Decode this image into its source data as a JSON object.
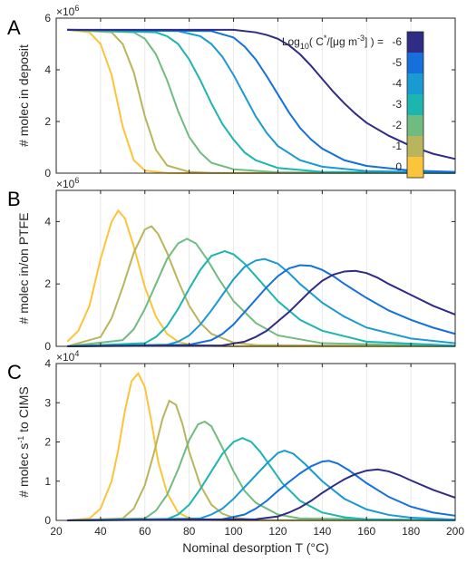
{
  "colors": [
    "#fcc43a",
    "#b9b55c",
    "#70bc80",
    "#1db5b0",
    "#1a9ad2",
    "#1570db",
    "#2e2c84"
  ],
  "colorbar": {
    "labels": [
      "-6",
      "-5",
      "-4",
      "-3",
      "-2",
      "-1",
      "0"
    ],
    "title_prefix": "Log",
    "title_sub": "10",
    "title_mid1": "( C",
    "title_sup1": "*",
    "title_mid2": "/[μg m",
    "title_sup2": "-3",
    "title_end": "] ) ="
  },
  "xaxis": {
    "label": "Nominal desorption T (°C)",
    "ticks": [
      "20",
      "40",
      "60",
      "80",
      "100",
      "120",
      "140",
      "160",
      "180",
      "200"
    ],
    "range": [
      20,
      200
    ]
  },
  "chart_data": [
    {
      "type": "line",
      "panel": "A",
      "ylabel": "# molec in deposit",
      "multiplier_base": "×10",
      "multiplier_exp": "6",
      "yticks": [
        "0",
        "2",
        "4",
        "6"
      ],
      "ylim": [
        0,
        6
      ],
      "grid": "vertical",
      "series": [
        {
          "name": "0",
          "x": [
            25,
            35,
            40,
            45,
            50,
            55,
            60,
            70,
            80,
            200
          ],
          "y": [
            5.55,
            5.45,
            5.0,
            3.8,
            1.8,
            0.5,
            0.1,
            0.01,
            0,
            0
          ]
        },
        {
          "name": "-1",
          "x": [
            25,
            45,
            50,
            55,
            60,
            65,
            70,
            80,
            90,
            200
          ],
          "y": [
            5.55,
            5.45,
            5.0,
            3.9,
            2.2,
            0.9,
            0.3,
            0.05,
            0.01,
            0
          ]
        },
        {
          "name": "-2",
          "x": [
            25,
            55,
            60,
            65,
            70,
            75,
            80,
            85,
            90,
            100,
            120,
            200
          ],
          "y": [
            5.55,
            5.45,
            5.2,
            4.6,
            3.6,
            2.4,
            1.4,
            0.8,
            0.4,
            0.15,
            0.03,
            0
          ]
        },
        {
          "name": "-3",
          "x": [
            25,
            65,
            70,
            75,
            80,
            85,
            90,
            95,
            100,
            105,
            110,
            120,
            140,
            200
          ],
          "y": [
            5.55,
            5.45,
            5.3,
            5.0,
            4.4,
            3.6,
            2.7,
            1.9,
            1.3,
            0.8,
            0.5,
            0.2,
            0.05,
            0
          ]
        },
        {
          "name": "-4",
          "x": [
            25,
            75,
            85,
            90,
            95,
            100,
            105,
            110,
            115,
            120,
            130,
            140,
            160,
            200
          ],
          "y": [
            5.55,
            5.5,
            5.3,
            5.0,
            4.5,
            3.8,
            3.0,
            2.2,
            1.55,
            1.05,
            0.5,
            0.25,
            0.08,
            0.02
          ]
        },
        {
          "name": "-5",
          "x": [
            25,
            90,
            100,
            105,
            110,
            115,
            120,
            125,
            130,
            135,
            140,
            150,
            160,
            180,
            200
          ],
          "y": [
            5.55,
            5.5,
            5.25,
            4.9,
            4.4,
            3.75,
            3.05,
            2.35,
            1.75,
            1.3,
            0.95,
            0.5,
            0.28,
            0.1,
            0.05
          ]
        },
        {
          "name": "-6",
          "x": [
            25,
            100,
            110,
            115,
            120,
            125,
            130,
            135,
            140,
            145,
            150,
            155,
            160,
            170,
            180,
            190,
            200
          ],
          "y": [
            5.55,
            5.55,
            5.45,
            5.35,
            5.2,
            4.95,
            4.6,
            4.15,
            3.65,
            3.15,
            2.7,
            2.3,
            1.95,
            1.45,
            1.05,
            0.75,
            0.55
          ]
        }
      ]
    },
    {
      "type": "line",
      "panel": "B",
      "ylabel": "# molec in/on PTFE",
      "multiplier_base": "×10",
      "multiplier_exp": "6",
      "yticks": [
        "0",
        "2",
        "4"
      ],
      "ylim": [
        0,
        5
      ],
      "grid": "vertical",
      "series": [
        {
          "name": "0",
          "x": [
            25,
            30,
            35,
            40,
            45,
            48,
            51,
            55,
            60,
            65,
            70,
            75,
            80,
            90,
            100,
            200
          ],
          "y": [
            0.15,
            0.5,
            1.3,
            2.8,
            4.0,
            4.35,
            4.1,
            3.2,
            1.9,
            0.95,
            0.4,
            0.15,
            0.06,
            0.01,
            0,
            0
          ]
        },
        {
          "name": "-1",
          "x": [
            25,
            40,
            45,
            50,
            55,
            60,
            63,
            66,
            70,
            75,
            80,
            85,
            90,
            100,
            110,
            200
          ],
          "y": [
            0,
            0.3,
            0.9,
            1.9,
            3.0,
            3.75,
            3.85,
            3.6,
            3.0,
            2.1,
            1.3,
            0.75,
            0.4,
            0.12,
            0.04,
            0
          ]
        },
        {
          "name": "-2",
          "x": [
            25,
            50,
            55,
            60,
            65,
            70,
            75,
            79,
            83,
            88,
            93,
            100,
            110,
            120,
            140,
            200
          ],
          "y": [
            0,
            0.2,
            0.55,
            1.2,
            2.0,
            2.8,
            3.3,
            3.45,
            3.3,
            2.8,
            2.2,
            1.45,
            0.75,
            0.35,
            0.1,
            0
          ]
        },
        {
          "name": "-3",
          "x": [
            25,
            60,
            65,
            70,
            75,
            80,
            85,
            90,
            96,
            100,
            105,
            110,
            120,
            130,
            140,
            160,
            200
          ],
          "y": [
            0,
            0.1,
            0.3,
            0.65,
            1.2,
            1.85,
            2.45,
            2.9,
            3.05,
            2.95,
            2.65,
            2.25,
            1.45,
            0.85,
            0.5,
            0.15,
            0.02
          ]
        },
        {
          "name": "-4",
          "x": [
            25,
            70,
            75,
            80,
            85,
            90,
            95,
            100,
            105,
            110,
            114,
            120,
            125,
            130,
            140,
            150,
            160,
            180,
            200
          ],
          "y": [
            0,
            0.05,
            0.15,
            0.35,
            0.7,
            1.15,
            1.65,
            2.15,
            2.55,
            2.75,
            2.8,
            2.65,
            2.35,
            2.0,
            1.4,
            0.95,
            0.6,
            0.25,
            0.1
          ]
        },
        {
          "name": "-5",
          "x": [
            25,
            80,
            90,
            95,
            100,
            105,
            110,
            115,
            120,
            125,
            130,
            135,
            140,
            145,
            150,
            160,
            170,
            180,
            190,
            200
          ],
          "y": [
            0,
            0.05,
            0.2,
            0.4,
            0.7,
            1.1,
            1.5,
            1.9,
            2.25,
            2.5,
            2.6,
            2.58,
            2.45,
            2.25,
            2.0,
            1.55,
            1.15,
            0.85,
            0.6,
            0.4
          ]
        },
        {
          "name": "-6",
          "x": [
            25,
            95,
            105,
            110,
            115,
            120,
            125,
            130,
            135,
            140,
            145,
            150,
            155,
            160,
            165,
            170,
            180,
            190,
            200
          ],
          "y": [
            0,
            0.03,
            0.15,
            0.3,
            0.5,
            0.8,
            1.1,
            1.45,
            1.8,
            2.1,
            2.3,
            2.4,
            2.42,
            2.35,
            2.2,
            2.0,
            1.65,
            1.3,
            1.02
          ]
        }
      ]
    },
    {
      "type": "line",
      "panel": "C",
      "ylabel": "# molec s⁻¹ to CIMS",
      "multiplier_base": "×10",
      "multiplier_exp": "4",
      "yticks": [
        "0",
        "1",
        "2",
        "3",
        "4"
      ],
      "ylim": [
        0,
        4
      ],
      "grid": "vertical",
      "series": [
        {
          "name": "0",
          "x": [
            25,
            35,
            40,
            45,
            48,
            51,
            54,
            57,
            60,
            63,
            66,
            70,
            75,
            80,
            90,
            100,
            200
          ],
          "y": [
            0,
            0.05,
            0.3,
            1.0,
            1.8,
            2.8,
            3.55,
            3.75,
            3.4,
            2.5,
            1.5,
            0.7,
            0.2,
            0.06,
            0.01,
            0,
            0
          ]
        },
        {
          "name": "-1",
          "x": [
            25,
            50,
            55,
            60,
            64,
            68,
            71,
            74,
            77,
            80,
            85,
            90,
            95,
            100,
            110,
            200
          ],
          "y": [
            0,
            0.05,
            0.3,
            0.9,
            1.7,
            2.6,
            3.05,
            2.95,
            2.45,
            1.75,
            0.9,
            0.4,
            0.17,
            0.07,
            0.01,
            0
          ]
        },
        {
          "name": "-2",
          "x": [
            25,
            60,
            65,
            70,
            75,
            80,
            84,
            87,
            90,
            95,
            100,
            105,
            110,
            120,
            130,
            200
          ],
          "y": [
            0,
            0.05,
            0.25,
            0.65,
            1.3,
            2.05,
            2.45,
            2.52,
            2.4,
            1.85,
            1.25,
            0.75,
            0.45,
            0.15,
            0.05,
            0
          ]
        },
        {
          "name": "-3",
          "x": [
            25,
            70,
            75,
            80,
            85,
            90,
            95,
            100,
            104,
            108,
            112,
            117,
            122,
            130,
            140,
            150,
            160,
            200
          ],
          "y": [
            0,
            0.03,
            0.15,
            0.4,
            0.8,
            1.25,
            1.7,
            2.0,
            2.1,
            2.0,
            1.75,
            1.35,
            0.95,
            0.5,
            0.2,
            0.08,
            0.03,
            0
          ]
        },
        {
          "name": "-4",
          "x": [
            25,
            85,
            90,
            95,
            100,
            105,
            110,
            115,
            120,
            123,
            127,
            132,
            140,
            150,
            160,
            170,
            180,
            200
          ],
          "y": [
            0,
            0.05,
            0.15,
            0.3,
            0.55,
            0.85,
            1.15,
            1.45,
            1.72,
            1.78,
            1.7,
            1.45,
            1.0,
            0.55,
            0.28,
            0.14,
            0.07,
            0.02
          ]
        },
        {
          "name": "-5",
          "x": [
            25,
            95,
            105,
            110,
            115,
            120,
            125,
            130,
            135,
            140,
            143,
            147,
            152,
            160,
            170,
            180,
            190,
            200
          ],
          "y": [
            0,
            0.03,
            0.15,
            0.3,
            0.5,
            0.75,
            0.98,
            1.2,
            1.38,
            1.5,
            1.52,
            1.45,
            1.28,
            0.95,
            0.6,
            0.35,
            0.2,
            0.12
          ]
        },
        {
          "name": "-6",
          "x": [
            25,
            110,
            120,
            125,
            130,
            135,
            140,
            145,
            150,
            155,
            160,
            165,
            170,
            175,
            180,
            190,
            200
          ],
          "y": [
            0,
            0.03,
            0.1,
            0.2,
            0.33,
            0.5,
            0.7,
            0.88,
            1.05,
            1.18,
            1.27,
            1.3,
            1.25,
            1.15,
            1.02,
            0.78,
            0.58
          ]
        }
      ]
    }
  ]
}
